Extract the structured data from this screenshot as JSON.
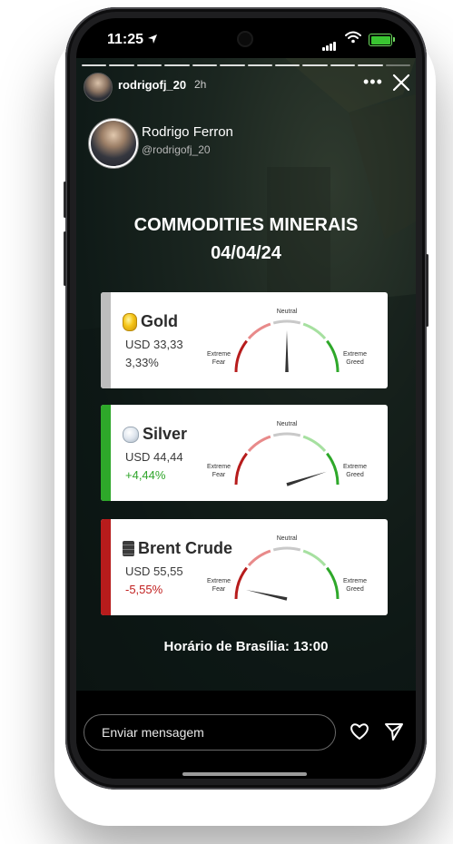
{
  "status_bar": {
    "time": "11:25"
  },
  "story_header": {
    "username": "rodrigofj_20",
    "age": "2h"
  },
  "profile": {
    "name": "Rodrigo Ferron",
    "handle": "@rodrigofj_20"
  },
  "post": {
    "title": "COMMODITIES MINERAIS",
    "date": "04/04/24",
    "footer": "Horário de Brasília: 13:00",
    "gauge_labels": {
      "neutral": "Neutral",
      "fear_line1": "Extreme",
      "fear_line2": "Fear",
      "greed_line1": "Extreme",
      "greed_line2": "Greed"
    },
    "commodities": [
      {
        "name": "Gold",
        "icon": "gold-coin-icon",
        "usd": "USD 33,33",
        "change": "3,33%",
        "change_color": "#3a3a3a",
        "bar_color": "#bdbdbd",
        "gauge_level": 0.5
      },
      {
        "name": "Silver",
        "icon": "silver-coin-icon",
        "usd": "USD 44,44",
        "change": "+4,44%",
        "change_color": "#2fa52a",
        "bar_color": "#2ea82a",
        "gauge_level": 0.9
      },
      {
        "name": "Brent Crude",
        "icon": "oil-barrel-icon",
        "usd": "USD 55,55",
        "change": "-5,55%",
        "change_color": "#c11f1f",
        "bar_color": "#b71c1c",
        "gauge_level": 0.07
      }
    ]
  },
  "message_bar": {
    "placeholder": "Enviar mensagem"
  },
  "colors": {
    "fear": "#b71c1c",
    "fear_light": "#e88a8a",
    "neutral": "#c9c9c9",
    "greed_light": "#a6e0a0",
    "greed": "#2ea82a",
    "needle": "#333333"
  }
}
